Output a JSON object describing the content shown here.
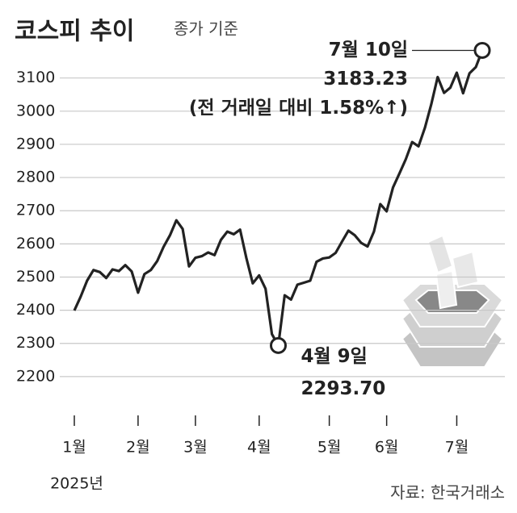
{
  "chart_data": {
    "type": "line",
    "title": "코스피 추이",
    "subtitle": "종가 기준",
    "source": "자료: 한국거래소",
    "x_sublabel": "2025년",
    "categories": [
      "1월",
      null,
      null,
      null,
      null,
      null,
      null,
      null,
      null,
      null,
      "2월",
      null,
      null,
      null,
      null,
      null,
      null,
      null,
      null,
      "3월",
      null,
      null,
      null,
      null,
      null,
      null,
      null,
      null,
      null,
      "4월",
      null,
      null,
      null,
      null,
      null,
      null,
      null,
      null,
      null,
      null,
      "5월",
      null,
      null,
      null,
      null,
      null,
      null,
      null,
      null,
      "6월",
      null,
      null,
      null,
      null,
      null,
      null,
      null,
      null,
      null,
      null,
      "7월",
      null,
      null,
      null,
      null
    ],
    "values": [
      2399,
      2441,
      2489,
      2521,
      2515,
      2497,
      2523,
      2518,
      2536,
      2517,
      2453,
      2509,
      2521,
      2548,
      2591,
      2626,
      2671,
      2645,
      2532,
      2558,
      2563,
      2574,
      2566,
      2612,
      2637,
      2629,
      2643,
      2557,
      2481,
      2505,
      2465,
      2328,
      2293.7,
      2445,
      2432,
      2477,
      2483,
      2489,
      2546,
      2556,
      2559,
      2573,
      2607,
      2640,
      2626,
      2603,
      2592,
      2637,
      2720,
      2698,
      2770,
      2812,
      2855,
      2907,
      2894,
      2950,
      3021,
      3103,
      3055,
      3071,
      3116,
      3054,
      3114,
      3133,
      3183.23
    ],
    "color": "#222222",
    "ylim": [
      2100,
      3250
    ],
    "yticks": [
      2200,
      2300,
      2400,
      2500,
      2600,
      2700,
      2800,
      2900,
      3000,
      3100
    ],
    "grid": true,
    "annotations": [
      {
        "index": 64,
        "lines": [
          "7월 10일",
          "3183.23",
          "(전 거래일 대비 1.58%↑)"
        ]
      },
      {
        "index": 32,
        "lines": [
          "4월 9일",
          "2293.70"
        ]
      }
    ]
  }
}
